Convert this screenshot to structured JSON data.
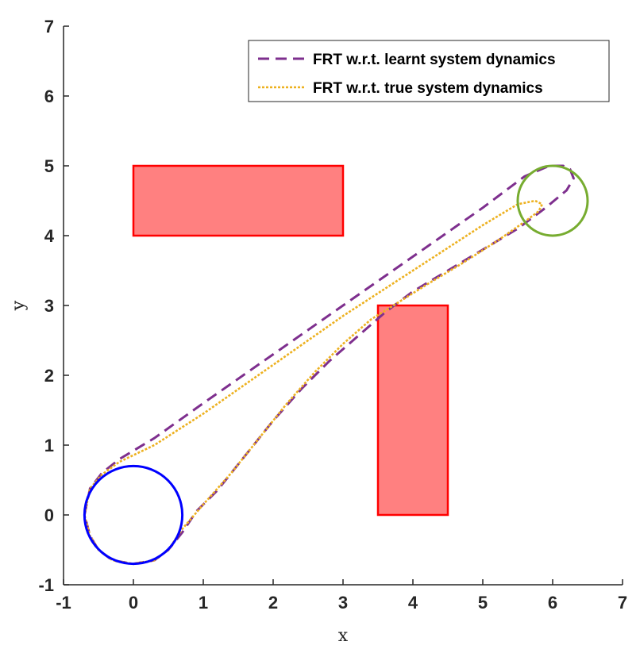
{
  "chart_data": {
    "type": "line",
    "xlabel": "x",
    "ylabel": "y",
    "xlim": [
      -1,
      7
    ],
    "ylim": [
      -1,
      7
    ],
    "x_ticks": [
      "-1",
      "0",
      "1",
      "2",
      "3",
      "4",
      "5",
      "6",
      "7"
    ],
    "y_ticks": [
      "-1",
      "0",
      "1",
      "2",
      "3",
      "4",
      "5",
      "6",
      "7"
    ],
    "grid": false,
    "legend_position": "top-right",
    "obstacles": [
      {
        "x0": 0,
        "y0": 4,
        "x1": 3,
        "y1": 5,
        "fill": "#ff8080",
        "stroke": "#ff0000"
      },
      {
        "x0": 3.5,
        "y0": 0,
        "x1": 4.5,
        "y1": 3,
        "fill": "#ff8080",
        "stroke": "#ff0000"
      }
    ],
    "start_circle": {
      "cx": 0,
      "cy": 0,
      "r": 0.7,
      "color": "#0000ff"
    },
    "goal_circle": {
      "cx": 6,
      "cy": 4.5,
      "r": 0.5,
      "color": "#77ac30"
    },
    "series": [
      {
        "name": "FRT w.r.t. learnt system dynamics",
        "color": "#7e2f8e",
        "dash": "dashed",
        "x": [
          -0.7,
          -0.62,
          -0.45,
          -0.2,
          0.3,
          1.0,
          2.0,
          3.0,
          4.0,
          5.0,
          5.6,
          5.95,
          6.15,
          6.25,
          6.3,
          6.2,
          5.9,
          5.5,
          5.0,
          4.5,
          4.0,
          3.6,
          3.2,
          2.8,
          2.4,
          2.0,
          1.6,
          1.2,
          0.9,
          0.7,
          0.5,
          0.3,
          0.0,
          -0.3,
          -0.5,
          -0.62,
          -0.7
        ],
        "y": [
          0.0,
          0.38,
          0.6,
          0.8,
          1.1,
          1.6,
          2.3,
          3.0,
          3.7,
          4.4,
          4.85,
          5.0,
          5.0,
          4.95,
          4.82,
          4.65,
          4.4,
          4.1,
          3.8,
          3.5,
          3.2,
          2.9,
          2.55,
          2.2,
          1.8,
          1.35,
          0.85,
          0.35,
          0.05,
          -0.25,
          -0.5,
          -0.65,
          -0.7,
          -0.65,
          -0.5,
          -0.3,
          0.0
        ]
      },
      {
        "name": "FRT w.r.t. true system dynamics",
        "color": "#edb120",
        "dash": "dotted",
        "x": [
          -0.7,
          -0.62,
          -0.45,
          -0.2,
          0.3,
          1.0,
          2.0,
          3.0,
          4.0,
          5.0,
          5.5,
          5.75,
          5.85,
          5.8,
          5.6,
          5.2,
          4.7,
          4.2,
          3.8,
          3.4,
          3.0,
          2.6,
          2.2,
          1.8,
          1.4,
          1.0,
          0.7,
          0.5,
          0.3,
          0.0,
          -0.3,
          -0.5,
          -0.62,
          -0.7
        ],
        "y": [
          0.0,
          0.38,
          0.58,
          0.76,
          1.0,
          1.45,
          2.15,
          2.85,
          3.5,
          4.15,
          4.45,
          4.5,
          4.45,
          4.35,
          4.2,
          3.92,
          3.6,
          3.3,
          3.05,
          2.8,
          2.45,
          2.05,
          1.6,
          1.1,
          0.6,
          0.15,
          -0.2,
          -0.5,
          -0.65,
          -0.7,
          -0.65,
          -0.5,
          -0.3,
          0.0
        ]
      }
    ]
  }
}
